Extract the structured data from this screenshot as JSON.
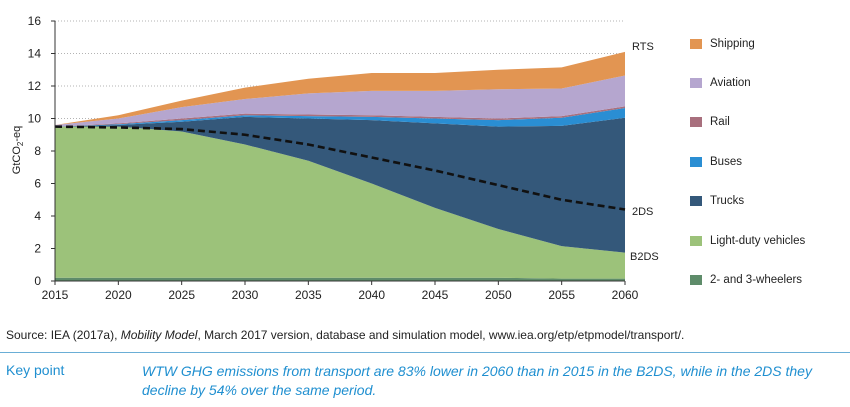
{
  "chart_data": {
    "type": "area",
    "x": [
      2015,
      2020,
      2025,
      2030,
      2035,
      2040,
      2045,
      2050,
      2055,
      2060
    ],
    "ylabel_main": "GtCO",
    "ylabel_sub": "2",
    "ylabel_tail": "-eq",
    "ylim": [
      0,
      16
    ],
    "yticks": [
      0,
      2,
      4,
      6,
      8,
      10,
      12,
      14,
      16
    ],
    "xticks": [
      "2015",
      "2020",
      "2025",
      "2030",
      "2035",
      "2040",
      "2045",
      "2050",
      "2055",
      "2060"
    ],
    "grid": "horizontal dotted",
    "legend_position": "right",
    "series": [
      {
        "name": "2- and 3-wheelers",
        "color": "#5e8c6a",
        "values": [
          0.2,
          0.2,
          0.2,
          0.2,
          0.2,
          0.2,
          0.2,
          0.2,
          0.15,
          0.15
        ]
      },
      {
        "name": "Light-duty vehicles",
        "color": "#9cc27a",
        "values": [
          9.3,
          9.3,
          9.0,
          8.2,
          7.2,
          5.8,
          4.3,
          3.0,
          2.0,
          1.6
        ]
      },
      {
        "name": "Trucks",
        "color": "#34587a",
        "values": [
          0.0,
          0.1,
          0.6,
          1.7,
          2.6,
          3.9,
          5.2,
          6.3,
          7.4,
          8.3
        ]
      },
      {
        "name": "Buses",
        "color": "#2a8ed3",
        "values": [
          0.0,
          0.05,
          0.1,
          0.1,
          0.15,
          0.2,
          0.3,
          0.4,
          0.5,
          0.6
        ]
      },
      {
        "name": "Rail",
        "color": "#a86f7d",
        "values": [
          0.0,
          0.05,
          0.1,
          0.1,
          0.1,
          0.1,
          0.1,
          0.1,
          0.1,
          0.1
        ]
      },
      {
        "name": "Aviation",
        "color": "#b5a6cf",
        "values": [
          0.1,
          0.3,
          0.7,
          0.9,
          1.3,
          1.5,
          1.6,
          1.8,
          1.7,
          1.9
        ]
      },
      {
        "name": "Shipping",
        "color": "#e29552",
        "values": [
          0.0,
          0.2,
          0.4,
          0.7,
          0.9,
          1.1,
          1.1,
          1.2,
          1.3,
          1.45
        ]
      }
    ],
    "line_2ds": [
      9.5,
      9.45,
      9.35,
      9.0,
      8.4,
      7.6,
      6.8,
      5.9,
      5.0,
      4.4
    ],
    "annotations": [
      "RTS",
      "2DS",
      "B2DS"
    ]
  },
  "source": {
    "prefix": "Source: IEA (2017a), ",
    "italic": "Mobility Model",
    "suffix": ", March 2017 version, database and simulation model, www.iea.org/etp/etpmodel/transport/."
  },
  "key_point": {
    "label": "Key point",
    "text": "WTW GHG emissions from transport are 83% lower in 2060 than in 2015 in the B2DS, while in the 2DS they decline by 54% over the same period."
  }
}
